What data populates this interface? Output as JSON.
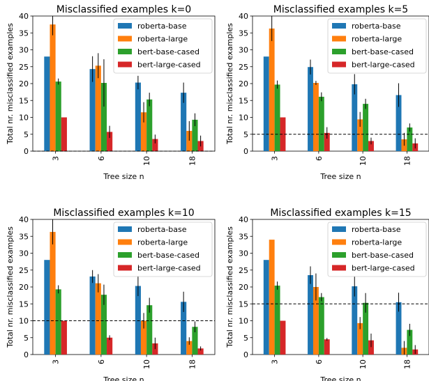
{
  "chart_data": [
    {
      "type": "bar",
      "title": "Misclassified examples k=0",
      "xlabel": "Tree size n",
      "ylabel": "Total nr. misclassified examples",
      "categories": [
        "3",
        "6",
        "10",
        "18"
      ],
      "ylim": [
        0,
        40
      ],
      "yticks": [
        0,
        5,
        10,
        15,
        20,
        25,
        30,
        35,
        40
      ],
      "reference_line": 0,
      "legend_position": "top-right",
      "series": [
        {
          "name": "roberta-base",
          "color": "#1f77b4",
          "values": [
            28,
            24.3,
            20.3,
            17.3
          ],
          "errors": [
            0,
            3.8,
            2.0,
            3.0
          ]
        },
        {
          "name": "roberta-large",
          "color": "#ff7f0e",
          "values": [
            37.5,
            25.3,
            11.5,
            6.0
          ],
          "errors": [
            3.2,
            3.7,
            3.0,
            2.9
          ]
        },
        {
          "name": "bert-base-cased",
          "color": "#2ca02c",
          "values": [
            20.6,
            20.2,
            15.3,
            9.3
          ],
          "errors": [
            0.9,
            7.0,
            2.0,
            1.9
          ]
        },
        {
          "name": "bert-large-cased",
          "color": "#d62728",
          "values": [
            10.0,
            5.7,
            3.6,
            3.0
          ],
          "errors": [
            0,
            1.8,
            1.3,
            1.6
          ]
        }
      ]
    },
    {
      "type": "bar",
      "title": "Misclassified examples k=5",
      "xlabel": "Tree size n",
      "ylabel": "Total nr. misclassified examples",
      "categories": [
        "3",
        "6",
        "10",
        "18"
      ],
      "ylim": [
        0,
        40
      ],
      "yticks": [
        0,
        5,
        10,
        15,
        20,
        25,
        30,
        35,
        40
      ],
      "reference_line": 5,
      "legend_position": "top-right",
      "series": [
        {
          "name": "roberta-base",
          "color": "#1f77b4",
          "values": [
            28,
            24.9,
            19.8,
            16.6
          ],
          "errors": [
            0,
            2.2,
            3.0,
            3.5
          ]
        },
        {
          "name": "roberta-large",
          "color": "#ff7f0e",
          "values": [
            36.3,
            20.2,
            9.4,
            3.5
          ],
          "errors": [
            3.7,
            0.6,
            2.2,
            1.9
          ]
        },
        {
          "name": "bert-base-cased",
          "color": "#2ca02c",
          "values": [
            19.7,
            16.1,
            14.0,
            7.0
          ],
          "errors": [
            1.2,
            1.3,
            1.5,
            1.2
          ]
        },
        {
          "name": "bert-large-cased",
          "color": "#d62728",
          "values": [
            10.0,
            5.4,
            3.0,
            2.3
          ],
          "errors": [
            0,
            1.7,
            1.0,
            1.5
          ]
        }
      ]
    },
    {
      "type": "bar",
      "title": "Misclassified examples k=10",
      "xlabel": "Tree size n",
      "ylabel": "Total nr. misclassified examples",
      "categories": [
        "3",
        "6",
        "10",
        "18"
      ],
      "ylim": [
        0,
        40
      ],
      "yticks": [
        0,
        5,
        10,
        15,
        20,
        25,
        30,
        35,
        40
      ],
      "reference_line": 10,
      "legend_position": "top-right",
      "series": [
        {
          "name": "roberta-base",
          "color": "#1f77b4",
          "values": [
            28,
            23.1,
            20.3,
            15.6
          ],
          "errors": [
            0,
            1.9,
            3.0,
            3.0
          ]
        },
        {
          "name": "roberta-large",
          "color": "#ff7f0e",
          "values": [
            36.3,
            21.1,
            10.0,
            4.0
          ],
          "errors": [
            3.7,
            2.7,
            2.3,
            1.1
          ]
        },
        {
          "name": "bert-base-cased",
          "color": "#2ca02c",
          "values": [
            19.3,
            17.7,
            14.6,
            8.2
          ],
          "errors": [
            1.2,
            3.0,
            2.2,
            1.6
          ]
        },
        {
          "name": "bert-large-cased",
          "color": "#d62728",
          "values": [
            10.0,
            5.0,
            3.3,
            1.8
          ],
          "errors": [
            0,
            0.7,
            1.7,
            0.6
          ]
        }
      ]
    },
    {
      "type": "bar",
      "title": "Misclassified examples k=15",
      "xlabel": "Tree size n",
      "ylabel": "Total nr. misclassified examples",
      "categories": [
        "3",
        "6",
        "10",
        "18"
      ],
      "ylim": [
        0,
        40
      ],
      "yticks": [
        0,
        5,
        10,
        15,
        20,
        25,
        30,
        35,
        40
      ],
      "reference_line": 15,
      "legend_position": "top-right",
      "series": [
        {
          "name": "roberta-base",
          "color": "#1f77b4",
          "values": [
            28,
            23.5,
            20.2,
            15.5
          ],
          "errors": [
            0,
            2.6,
            3.0,
            2.8
          ]
        },
        {
          "name": "roberta-large",
          "color": "#ff7f0e",
          "values": [
            34.0,
            20.0,
            9.3,
            2.0
          ],
          "errors": [
            0,
            4.0,
            1.8,
            2.0
          ]
        },
        {
          "name": "bert-base-cased",
          "color": "#2ca02c",
          "values": [
            20.4,
            17.0,
            15.3,
            7.3
          ],
          "errors": [
            1.2,
            1.2,
            2.9,
            1.8
          ]
        },
        {
          "name": "bert-large-cased",
          "color": "#d62728",
          "values": [
            10.0,
            4.5,
            4.2,
            1.5
          ],
          "errors": [
            0,
            0.4,
            2.0,
            1.3
          ]
        }
      ]
    }
  ]
}
